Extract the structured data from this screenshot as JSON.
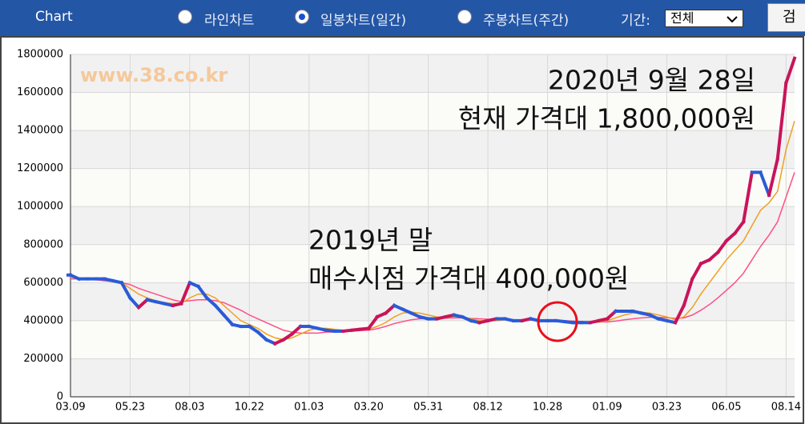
{
  "header": {
    "title": "Chart",
    "options": [
      "라인차트",
      "일봉차트(일간)",
      "주봉차트(주간)"
    ],
    "selected": 1,
    "period_label": "기간:",
    "period_value": "전체",
    "button": "검"
  },
  "chart_data": {
    "type": "line",
    "watermark": "www.38.co.kr",
    "annotations": [
      "2020년 9월 28일",
      "현재 가격대 1,800,000원",
      "2019년 말",
      "매수시점 가격대 400,000원"
    ],
    "categories": [
      "03.09",
      null,
      null,
      null,
      null,
      null,
      null,
      "05.23",
      null,
      null,
      null,
      null,
      null,
      null,
      "08.03",
      null,
      null,
      null,
      null,
      null,
      null,
      "10.22",
      null,
      null,
      null,
      null,
      null,
      null,
      "01.03",
      null,
      null,
      null,
      null,
      null,
      null,
      "03.20",
      null,
      null,
      null,
      null,
      null,
      null,
      "05.31",
      null,
      null,
      null,
      null,
      null,
      null,
      "08.12",
      null,
      null,
      null,
      null,
      null,
      null,
      "10.28",
      null,
      null,
      null,
      null,
      null,
      null,
      "01.09",
      null,
      null,
      null,
      null,
      null,
      null,
      "03.23",
      null,
      null,
      null,
      null,
      null,
      null,
      "06.05",
      null,
      null,
      null,
      null,
      null,
      null,
      "08.14",
      null
    ],
    "series": [
      {
        "color": "#2a5bd7",
        "up_color": "#c8145a",
        "values": [
          640000,
          620000,
          620000,
          620000,
          620000,
          610000,
          600000,
          520000,
          470000,
          510000,
          500000,
          490000,
          480000,
          490000,
          600000,
          580000,
          520000,
          480000,
          430000,
          380000,
          370000,
          370000,
          340000,
          300000,
          280000,
          300000,
          330000,
          370000,
          370000,
          360000,
          350000,
          345000,
          345000,
          350000,
          355000,
          360000,
          420000,
          440000,
          480000,
          460000,
          440000,
          420000,
          410000,
          410000,
          420000,
          430000,
          420000,
          400000,
          390000,
          400000,
          410000,
          410000,
          400000,
          400000,
          410000,
          400000,
          400000,
          400000,
          395000,
          390000,
          390000,
          390000,
          400000,
          410000,
          450000,
          450000,
          450000,
          440000,
          430000,
          410000,
          400000,
          390000,
          480000,
          620000,
          700000,
          720000,
          760000,
          820000,
          860000,
          920000,
          1180000,
          1180000,
          1060000,
          1250000,
          1650000,
          1780000
        ]
      },
      {
        "color": "#f0a020",
        "values": [
          630000,
          625000,
          620000,
          620000,
          615000,
          610000,
          600000,
          570000,
          540000,
          520000,
          505000,
          495000,
          490000,
          490000,
          520000,
          540000,
          540000,
          520000,
          480000,
          440000,
          400000,
          380000,
          360000,
          330000,
          310000,
          300000,
          310000,
          330000,
          350000,
          360000,
          360000,
          355000,
          350000,
          350000,
          350000,
          355000,
          370000,
          390000,
          420000,
          440000,
          445000,
          440000,
          430000,
          420000,
          415000,
          420000,
          420000,
          410000,
          400000,
          400000,
          400000,
          405000,
          405000,
          402000,
          405000,
          402000,
          400000,
          400000,
          398000,
          395000,
          392000,
          390000,
          392000,
          400000,
          415000,
          430000,
          440000,
          445000,
          440000,
          430000,
          420000,
          405000,
          420000,
          470000,
          540000,
          600000,
          660000,
          720000,
          770000,
          820000,
          900000,
          980000,
          1020000,
          1080000,
          1300000,
          1450000
        ]
      },
      {
        "color": "#ff4f86",
        "values": [
          620000,
          620000,
          620000,
          615000,
          610000,
          605000,
          600000,
          590000,
          570000,
          555000,
          540000,
          525000,
          510000,
          500000,
          505000,
          510000,
          510000,
          505000,
          495000,
          475000,
          455000,
          430000,
          410000,
          390000,
          370000,
          350000,
          340000,
          335000,
          335000,
          335000,
          340000,
          340000,
          342000,
          345000,
          348000,
          350000,
          358000,
          370000,
          385000,
          395000,
          405000,
          410000,
          412000,
          412000,
          413000,
          415000,
          415000,
          412000,
          410000,
          408000,
          406000,
          405000,
          405000,
          404000,
          403000,
          402000,
          402000,
          400000,
          400000,
          398000,
          396000,
          394000,
          393000,
          394000,
          398000,
          405000,
          410000,
          415000,
          418000,
          418000,
          416000,
          412000,
          415000,
          430000,
          455000,
          485000,
          520000,
          560000,
          600000,
          650000,
          720000,
          790000,
          850000,
          920000,
          1050000,
          1180000
        ]
      }
    ],
    "ylim": [
      0,
      1800000
    ],
    "yticks": [
      0,
      200000,
      400000,
      600000,
      800000,
      1000000,
      1200000,
      1400000,
      1600000,
      1800000
    ],
    "grid": true
  }
}
